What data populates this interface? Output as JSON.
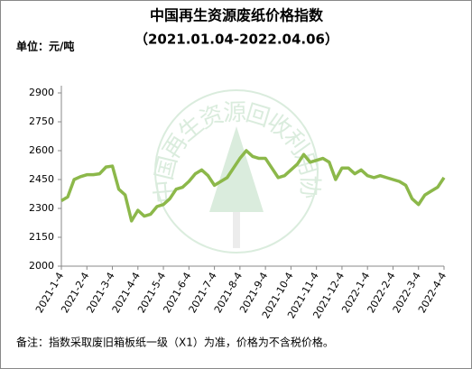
{
  "chart_data": {
    "type": "line",
    "title": "中国再生资源废纸价格指数",
    "subtitle": "（2021.01.04-2022.04.06）",
    "unit_label": "单位：元/吨",
    "note": "备注：指数采取废旧箱板纸一级（X1）为准，价格为不含税价格。",
    "watermark": "中国再生资源回收利用协会",
    "categories": [
      "2021-1-4",
      null,
      null,
      null,
      "2021-2-4",
      null,
      null,
      null,
      "2021-3-4",
      null,
      null,
      null,
      "2021-4-4",
      null,
      null,
      null,
      "2021-5-4",
      null,
      null,
      null,
      "2021-6-4",
      null,
      null,
      null,
      "2021-7-4",
      null,
      null,
      null,
      "2021-8-4",
      null,
      null,
      null,
      "2021-9-4",
      null,
      null,
      null,
      "2021-10-4",
      null,
      null,
      null,
      "2021-11-4",
      null,
      null,
      null,
      "2021-12-4",
      null,
      null,
      null,
      "2022-1-4",
      null,
      null,
      null,
      "2022-2-4",
      null,
      null,
      null,
      "2022-3-4",
      null,
      null,
      null,
      "2022-4-4"
    ],
    "series": [
      {
        "color": "#8cb84a",
        "values": [
          2340,
          2360,
          2450,
          2465,
          2475,
          2475,
          2480,
          2515,
          2520,
          2400,
          2370,
          2235,
          2290,
          2260,
          2270,
          2310,
          2320,
          2350,
          2400,
          2410,
          2440,
          2480,
          2500,
          2470,
          2420,
          2440,
          2460,
          2510,
          2560,
          2600,
          2570,
          2560,
          2560,
          2510,
          2460,
          2470,
          2500,
          2530,
          2580,
          2540,
          2550,
          2560,
          2540,
          2450,
          2510,
          2510,
          2480,
          2500,
          2470,
          2460,
          2470,
          2460,
          2450,
          2440,
          2420,
          2350,
          2320,
          2370,
          2390,
          2410,
          2460
        ]
      }
    ],
    "ylim": [
      2000,
      2900
    ],
    "yticks": [
      2000,
      2150,
      2300,
      2450,
      2600,
      2750,
      2900
    ],
    "grid": false
  }
}
